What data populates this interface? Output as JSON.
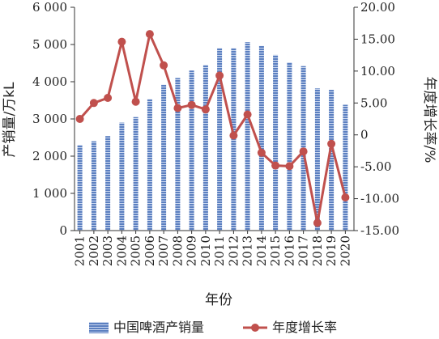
{
  "chart_data": {
    "type": "bar+line",
    "categories": [
      "2001",
      "2002",
      "2003",
      "2004",
      "2005",
      "2006",
      "2007",
      "2008",
      "2009",
      "2010",
      "2011",
      "2012",
      "2013",
      "2014",
      "2015",
      "2016",
      "2017",
      "2018",
      "2019",
      "2020"
    ],
    "series": [
      {
        "name": "中国啤酒产销量",
        "type": "bar",
        "axis": "left",
        "color": "#5b7fc0",
        "values": [
          2300,
          2400,
          2540,
          2900,
          3050,
          3530,
          3920,
          4100,
          4300,
          4450,
          4900,
          4900,
          5060,
          4960,
          4720,
          4520,
          4420,
          3820,
          3780,
          3380
        ]
      },
      {
        "name": "年度增长率",
        "type": "line",
        "axis": "right",
        "color": "#c0504d",
        "values": [
          2.5,
          5.0,
          5.8,
          14.6,
          5.2,
          15.8,
          10.9,
          4.2,
          4.7,
          4.0,
          9.3,
          -0.1,
          3.2,
          -2.8,
          -4.8,
          -4.9,
          -2.6,
          -13.8,
          -1.4,
          -9.8
        ]
      }
    ],
    "xlabel": "年份",
    "ylabel_left": "产销量/万kL",
    "ylabel_right": "年度增长率/%",
    "ylim_left": [
      0,
      6000
    ],
    "yticks_left": [
      "0",
      "1 000",
      "2 000",
      "3 000",
      "4 000",
      "5 000",
      "6 000"
    ],
    "ylim_right": [
      -15,
      20
    ],
    "yticks_right": [
      "-15.00",
      "-10.00",
      "-5.00",
      "0",
      "5.00",
      "10.00",
      "15.00",
      "20.00"
    ],
    "legend_position": "bottom",
    "grid": false
  }
}
